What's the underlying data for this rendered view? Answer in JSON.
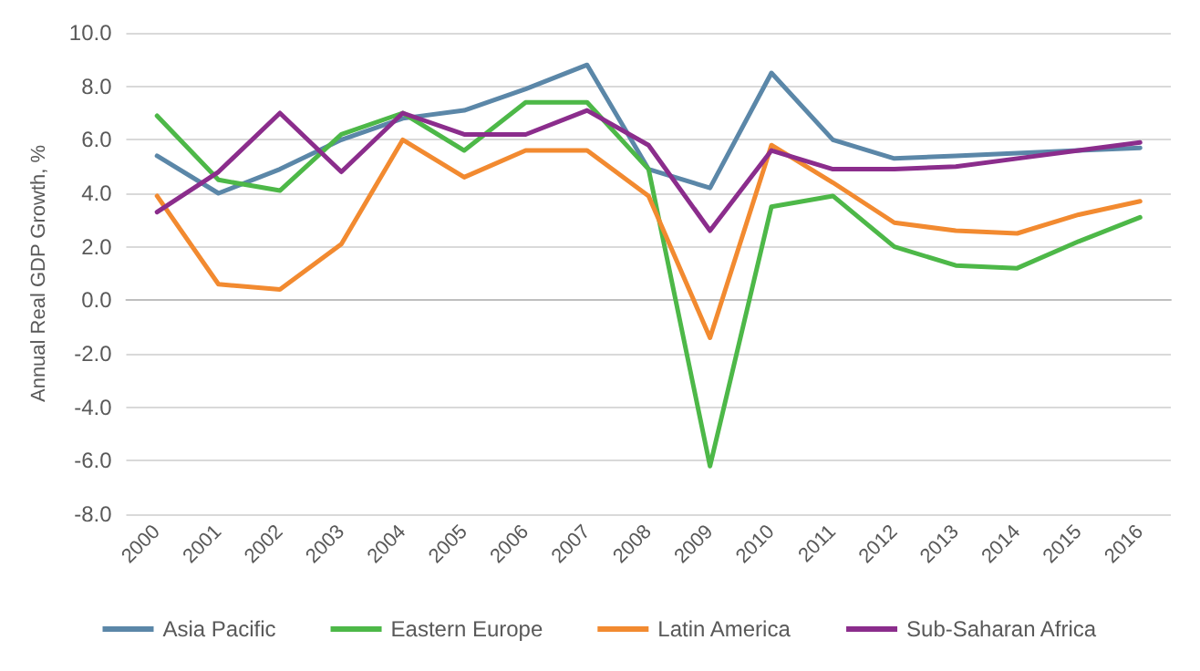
{
  "chart_data": {
    "type": "line",
    "ylabel": "Annual Real GDP Growth, %",
    "categories": [
      "2000",
      "2001",
      "2002",
      "2003",
      "2004",
      "2005",
      "2006",
      "2007",
      "2008",
      "2009",
      "2010",
      "2011",
      "2012",
      "2013",
      "2014",
      "2015",
      "2016"
    ],
    "series": [
      {
        "name": "Asia Pacific",
        "color": "#5b87a8",
        "values": [
          5.4,
          4.0,
          4.9,
          6.0,
          6.8,
          7.1,
          7.9,
          8.8,
          4.9,
          4.2,
          8.5,
          6.0,
          5.3,
          5.4,
          5.5,
          5.6,
          5.7
        ]
      },
      {
        "name": "Eastern Europe",
        "color": "#4db848",
        "values": [
          6.9,
          4.5,
          4.1,
          6.2,
          7.0,
          5.6,
          7.4,
          7.4,
          4.9,
          -6.2,
          3.5,
          3.9,
          2.0,
          1.3,
          1.2,
          2.2,
          3.1
        ]
      },
      {
        "name": "Latin America",
        "color": "#f28a30",
        "values": [
          3.9,
          0.6,
          0.4,
          2.1,
          6.0,
          4.6,
          5.6,
          5.6,
          3.9,
          -1.4,
          5.8,
          4.4,
          2.9,
          2.6,
          2.5,
          3.2,
          3.7
        ]
      },
      {
        "name": "Sub-Saharan Africa",
        "color": "#8b2d8c",
        "values": [
          3.3,
          4.8,
          7.0,
          4.8,
          7.0,
          6.2,
          6.2,
          7.1,
          5.8,
          2.6,
          5.6,
          4.9,
          4.9,
          5.0,
          5.3,
          5.6,
          5.9
        ]
      }
    ],
    "ylim": [
      -8,
      10
    ],
    "yticks": [
      {
        "value": -8,
        "label": "-8.0"
      },
      {
        "value": -6,
        "label": "-6.0"
      },
      {
        "value": -4,
        "label": "-4.0"
      },
      {
        "value": -2,
        "label": "-2.0"
      },
      {
        "value": 0,
        "label": "0.0"
      },
      {
        "value": 2,
        "label": "2.0"
      },
      {
        "value": 4,
        "label": "4.0"
      },
      {
        "value": 6,
        "label": "6.0"
      },
      {
        "value": 8,
        "label": "8.0"
      },
      {
        "value": 10,
        "label": "10.0"
      }
    ],
    "grid": "y",
    "legend": "bottom",
    "marker": "none",
    "line_style": "solid"
  }
}
